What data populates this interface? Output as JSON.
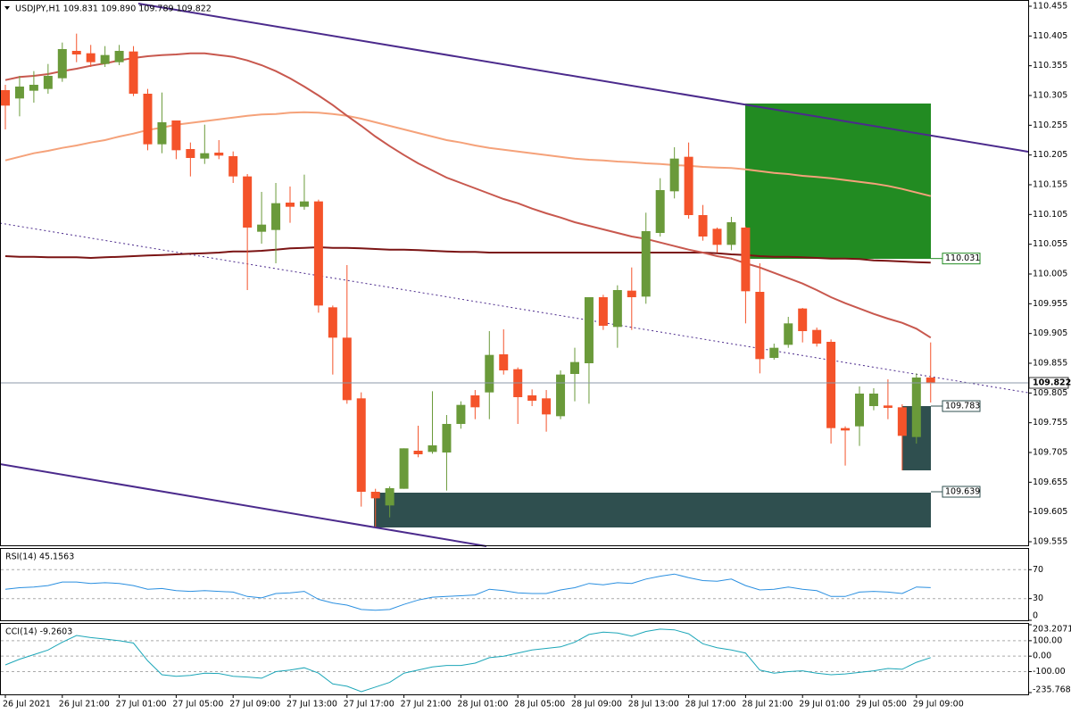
{
  "chart_data": [
    {
      "type": "candlestick",
      "title": "USDJPY,H1 109.831 109.890 109.789 109.822",
      "categories": [
        "26 Jul 2021",
        null,
        null,
        null,
        "26 Jul 21:00",
        null,
        null,
        null,
        "27 Jul 01:00",
        null,
        null,
        null,
        "27 Jul 05:00",
        null,
        null,
        null,
        "27 Jul 09:00",
        null,
        null,
        null,
        "27 Jul 13:00",
        null,
        null,
        null,
        "27 Jul 17:00",
        null,
        null,
        null,
        "27 Jul 21:00",
        null,
        null,
        null,
        "28 Jul 01:00",
        null,
        null,
        null,
        "28 Jul 05:00",
        null,
        null,
        null,
        "28 Jul 09:00",
        null,
        null,
        null,
        "28 Jul 13:00",
        null,
        null,
        null,
        "28 Jul 17:00",
        null,
        null,
        null,
        "28 Jul 21:00",
        null,
        null,
        null,
        "29 Jul 01:00",
        null,
        null,
        null,
        "29 Jul 05:00",
        null,
        null,
        null,
        "29 Jul 09:00",
        null
      ],
      "open": [
        110.314,
        110.3,
        110.313,
        110.316,
        110.334,
        110.38,
        110.376,
        110.358,
        110.361,
        110.379,
        110.308,
        110.223,
        110.263,
        110.215,
        110.199,
        110.209,
        110.203,
        110.169,
        110.076,
        110.079,
        110.125,
        110.118,
        110.127,
        109.949,
        109.898,
        109.796,
        109.639,
        109.616,
        109.644,
        109.708,
        109.706,
        109.705,
        109.753,
        109.801,
        109.806,
        109.87,
        109.845,
        109.801,
        109.796,
        109.766,
        109.837,
        109.855,
        109.966,
        109.916,
        109.977,
        109.967,
        110.074,
        110.144,
        110.202,
        110.104,
        110.081,
        110.054,
        110.083,
        109.975,
        109.864,
        109.886,
        109.947,
        109.911,
        109.891,
        109.746,
        109.749,
        109.783,
        109.784,
        109.781,
        109.731,
        109.831
      ],
      "high": [
        110.323,
        110.338,
        110.346,
        110.358,
        110.394,
        110.409,
        110.39,
        110.388,
        110.39,
        110.388,
        110.316,
        110.31,
        110.263,
        110.226,
        110.256,
        110.23,
        110.211,
        110.173,
        110.143,
        110.158,
        110.152,
        110.172,
        110.13,
        109.952,
        110.02,
        109.806,
        109.644,
        109.648,
        109.712,
        109.75,
        109.808,
        109.768,
        109.791,
        109.81,
        109.909,
        109.912,
        109.848,
        109.811,
        109.81,
        109.843,
        109.881,
        109.966,
        109.97,
        109.986,
        110.016,
        110.108,
        110.166,
        110.218,
        110.226,
        110.121,
        110.083,
        110.101,
        110.085,
        110.023,
        109.888,
        109.933,
        109.948,
        109.915,
        109.895,
        109.749,
        109.816,
        109.813,
        109.828,
        109.786,
        109.838,
        109.89
      ],
      "low": [
        110.248,
        110.27,
        110.293,
        110.308,
        110.328,
        110.361,
        110.353,
        110.353,
        110.356,
        110.304,
        110.213,
        110.208,
        110.198,
        110.169,
        110.19,
        110.198,
        110.158,
        109.978,
        110.056,
        110.023,
        110.091,
        110.113,
        109.94,
        109.836,
        109.787,
        109.614,
        109.58,
        109.596,
        109.644,
        109.697,
        109.703,
        109.641,
        109.745,
        109.761,
        109.761,
        109.836,
        109.753,
        109.783,
        109.74,
        109.761,
        109.791,
        109.787,
        109.911,
        109.881,
        109.911,
        109.955,
        110.068,
        110.132,
        110.098,
        110.061,
        110.041,
        110.045,
        109.922,
        109.838,
        109.861,
        109.881,
        109.89,
        109.883,
        109.72,
        109.683,
        109.716,
        109.776,
        109.761,
        109.675,
        109.72,
        109.789
      ],
      "close": [
        110.288,
        110.32,
        110.323,
        110.338,
        110.383,
        110.374,
        110.361,
        110.373,
        110.38,
        110.308,
        110.223,
        110.26,
        110.213,
        110.2,
        110.208,
        110.204,
        110.169,
        110.083,
        110.088,
        110.124,
        110.118,
        110.127,
        109.952,
        109.898,
        109.793,
        109.639,
        109.628,
        109.645,
        109.712,
        109.702,
        109.717,
        109.753,
        109.785,
        109.781,
        109.869,
        109.843,
        109.798,
        109.792,
        109.769,
        109.836,
        109.857,
        109.966,
        109.918,
        109.978,
        109.966,
        110.077,
        110.146,
        110.199,
        110.104,
        110.068,
        110.054,
        110.092,
        109.976,
        109.862,
        109.881,
        109.922,
        109.909,
        109.888,
        109.746,
        109.742,
        109.804,
        109.804,
        109.78,
        109.733,
        109.831,
        109.822
      ],
      "up_color": "#6a9a3a",
      "down_color": "#f4532a",
      "lines": [
        {
          "color": "#7b1414",
          "values": [
            110.035,
            110.034,
            110.034,
            110.033,
            110.033,
            110.033,
            110.032,
            110.033,
            110.034,
            110.035,
            110.036,
            110.037,
            110.038,
            110.039,
            110.04,
            110.041,
            110.043,
            110.043,
            110.044,
            110.046,
            110.048,
            110.049,
            110.05,
            110.049,
            110.049,
            110.048,
            110.047,
            110.046,
            110.046,
            110.045,
            110.044,
            110.043,
            110.042,
            110.042,
            110.041,
            110.041,
            110.041,
            110.041,
            110.041,
            110.041,
            110.041,
            110.041,
            110.041,
            110.041,
            110.041,
            110.041,
            110.041,
            110.041,
            110.041,
            110.041,
            110.04,
            110.038,
            110.037,
            110.035,
            110.034,
            110.034,
            110.033,
            110.032,
            110.031,
            110.031,
            110.03,
            110.028,
            110.027,
            110.026,
            110.025,
            110.024
          ]
        },
        {
          "color": "#f5a27a",
          "values": [
            110.196,
            110.202,
            110.208,
            110.212,
            110.217,
            110.221,
            110.226,
            110.23,
            110.236,
            110.241,
            110.247,
            110.251,
            110.256,
            110.259,
            110.262,
            110.265,
            110.268,
            110.271,
            110.273,
            110.274,
            110.276,
            110.277,
            110.276,
            110.274,
            110.271,
            110.266,
            110.26,
            110.254,
            110.248,
            110.242,
            110.236,
            110.23,
            110.226,
            110.221,
            110.217,
            110.214,
            110.211,
            110.208,
            110.205,
            110.202,
            110.199,
            110.197,
            110.196,
            110.194,
            110.193,
            110.191,
            110.19,
            110.188,
            110.187,
            110.185,
            110.184,
            110.183,
            110.181,
            110.178,
            110.175,
            110.173,
            110.17,
            110.168,
            110.166,
            110.163,
            110.16,
            110.157,
            110.153,
            110.148,
            110.142,
            110.136
          ]
        },
        {
          "color": "#c8584e",
          "values": [
            110.331,
            110.336,
            110.338,
            110.341,
            110.346,
            110.35,
            110.355,
            110.359,
            110.364,
            110.368,
            110.371,
            110.373,
            110.374,
            110.376,
            110.376,
            110.373,
            110.37,
            110.364,
            110.356,
            110.346,
            110.334,
            110.32,
            110.305,
            110.289,
            110.271,
            110.254,
            110.236,
            110.22,
            110.205,
            110.191,
            110.179,
            110.167,
            110.158,
            110.149,
            110.14,
            110.131,
            110.124,
            110.115,
            110.107,
            110.1,
            110.092,
            110.086,
            110.08,
            110.074,
            110.068,
            110.064,
            110.058,
            110.052,
            110.046,
            110.041,
            110.035,
            110.031,
            110.023,
            110.016,
            110.007,
            109.998,
            109.989,
            109.978,
            109.966,
            109.956,
            109.947,
            109.938,
            109.93,
            109.923,
            109.913,
            109.898
          ]
        }
      ],
      "ylim": [
        109.555,
        110.455
      ],
      "yticks": [
        110.455,
        110.405,
        110.355,
        110.305,
        110.255,
        110.205,
        110.155,
        110.105,
        110.055,
        110.005,
        109.955,
        109.905,
        109.855,
        109.805,
        109.755,
        109.705,
        109.655,
        109.605,
        109.555
      ],
      "last_price": 109.822,
      "price_labels": [
        {
          "value": 110.031,
          "color": "#228b22"
        },
        {
          "value": 109.783,
          "color": "#2f4f4f"
        },
        {
          "value": 109.639,
          "color": "#2f4f4f"
        }
      ]
    },
    {
      "type": "line",
      "title": "RSI(14) 45.1563",
      "color": "#2a8fe0",
      "values": [
        43,
        45,
        46,
        48,
        53,
        53,
        51,
        52,
        51,
        48,
        43,
        44,
        41,
        40,
        41,
        40,
        39,
        33,
        31,
        37,
        38,
        40,
        29,
        24,
        21,
        15,
        14,
        15,
        22,
        28,
        32,
        33,
        34,
        35,
        43,
        41,
        38,
        37,
        37,
        42,
        45,
        51,
        49,
        52,
        51,
        57,
        61,
        64,
        59,
        55,
        54,
        57,
        48,
        42,
        43,
        46,
        43,
        41,
        33,
        33,
        39,
        40,
        39,
        37,
        46,
        45.1563
      ],
      "ylim": [
        0,
        100
      ],
      "yticks": [
        70,
        30,
        0
      ]
    },
    {
      "type": "line",
      "title": "CCI(14) -9.2603",
      "color": "#1ca6b8",
      "values": [
        -57,
        -20,
        10,
        40,
        90,
        134,
        120,
        111,
        100,
        85,
        -30,
        -120,
        -130,
        -125,
        -110,
        -112,
        -130,
        -135,
        -143,
        -100,
        -90,
        -75,
        -110,
        -180,
        -195,
        -230,
        -200,
        -170,
        -110,
        -90,
        -70,
        -60,
        -60,
        -45,
        -10,
        0,
        20,
        40,
        50,
        60,
        90,
        140,
        155,
        150,
        130,
        160,
        175,
        170,
        145,
        80,
        55,
        40,
        20,
        -90,
        -110,
        -100,
        -95,
        -110,
        -120,
        -115,
        -105,
        -95,
        -80,
        -85,
        -40,
        -9.2603
      ],
      "ylim": [
        -235.7683,
        203.2071
      ],
      "yticks": [
        203.2071,
        {
          "value": 100,
          "label": "100.00"
        },
        {
          "value": 0,
          "label": "0.00"
        },
        {
          "value": -100,
          "label": "-100.00"
        },
        -235.7683
      ]
    }
  ]
}
